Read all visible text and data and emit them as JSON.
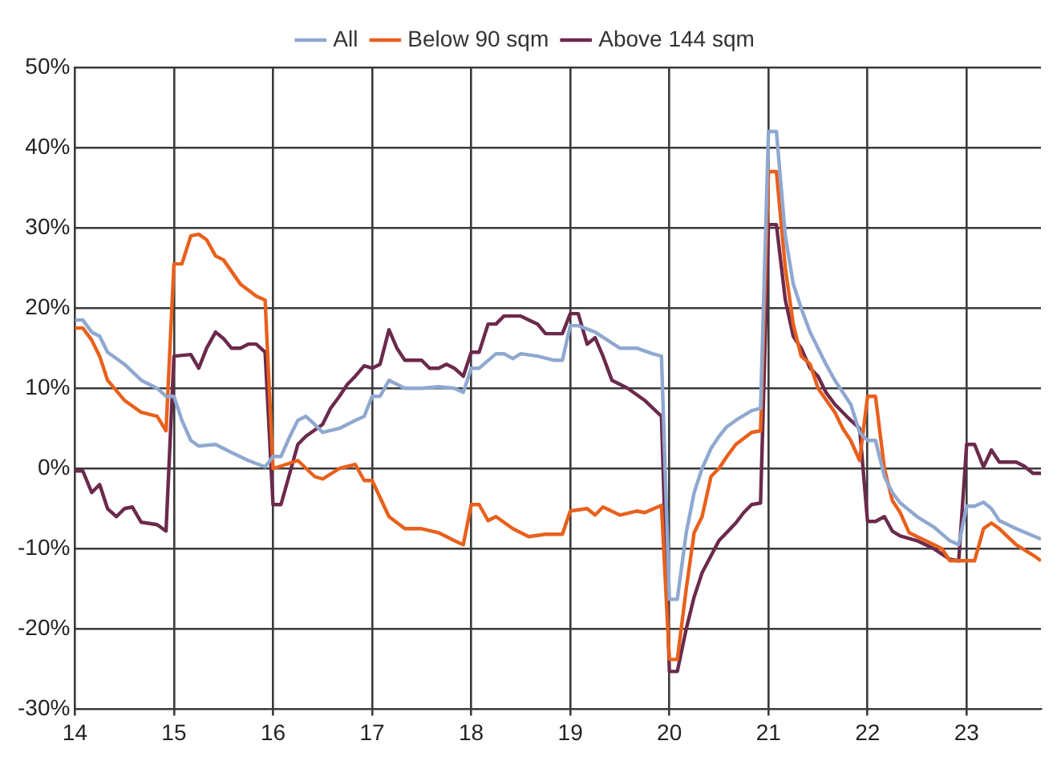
{
  "chart_data": {
    "type": "line",
    "xlim": [
      14,
      23.75
    ],
    "xticks": [
      14,
      15,
      16,
      17,
      18,
      19,
      20,
      21,
      22,
      23
    ],
    "ylim": [
      -30,
      50
    ],
    "yticks": [
      {
        "value": -30,
        "label": "-30%"
      },
      {
        "value": -20,
        "label": "-20%"
      },
      {
        "value": -10,
        "label": "-10%"
      },
      {
        "value": 0,
        "label": "0%"
      },
      {
        "value": 10,
        "label": "10%"
      },
      {
        "value": 20,
        "label": "20%"
      },
      {
        "value": 30,
        "label": "30%"
      },
      {
        "value": 40,
        "label": "40%"
      },
      {
        "value": 50,
        "label": "50%"
      }
    ],
    "grid": true,
    "legend": "top",
    "marker": "none",
    "line_style": "solid",
    "series": [
      {
        "name": "All",
        "color": "#8fa8d0",
        "x": [
          14,
          14.08,
          14.17,
          14.25,
          14.33,
          14.5,
          14.67,
          14.83,
          14.92,
          15,
          15.08,
          15.17,
          15.25,
          15.42,
          15.58,
          15.75,
          15.92,
          16,
          16.08,
          16.17,
          16.25,
          16.33,
          16.42,
          16.5,
          16.67,
          16.83,
          16.92,
          17,
          17.08,
          17.17,
          17.33,
          17.5,
          17.67,
          17.83,
          17.92,
          18,
          18.08,
          18.25,
          18.33,
          18.42,
          18.5,
          18.67,
          18.83,
          18.92,
          19,
          19.08,
          19.25,
          19.5,
          19.67,
          19.83,
          19.92,
          20,
          20.08,
          20.17,
          20.25,
          20.33,
          20.42,
          20.5,
          20.58,
          20.67,
          20.83,
          20.92,
          21,
          21.08,
          21.17,
          21.25,
          21.33,
          21.42,
          21.5,
          21.58,
          21.67,
          21.75,
          21.83,
          21.92,
          22,
          22.08,
          22.17,
          22.25,
          22.33,
          22.5,
          22.67,
          22.83,
          22.92,
          23,
          23.08,
          23.17,
          23.25,
          23.33,
          23.5,
          23.75
        ],
        "values": [
          18.5,
          18.5,
          17,
          16.5,
          14.5,
          13,
          11,
          10,
          9,
          9,
          6,
          3.5,
          2.8,
          3,
          2,
          1,
          0.2,
          1.5,
          1.5,
          4,
          6,
          6.5,
          5.5,
          4.5,
          5,
          6,
          6.5,
          9,
          9,
          11,
          10,
          10,
          10.2,
          10,
          9.5,
          12.5,
          12.5,
          14.3,
          14.3,
          13.7,
          14.3,
          14,
          13.5,
          13.5,
          17.8,
          17.8,
          17,
          15,
          15,
          14.3,
          14,
          -16.3,
          -16.3,
          -8,
          -3,
          0,
          2.5,
          4,
          5.2,
          6,
          7.2,
          7.5,
          42,
          42,
          29,
          23,
          20,
          17,
          15,
          13,
          11,
          9.5,
          8,
          4.5,
          3.5,
          3.5,
          -1,
          -3,
          -4.3,
          -6,
          -7.3,
          -9,
          -9.5,
          -4.7,
          -4.7,
          -4.2,
          -5,
          -6.5,
          -7.5,
          -8.8
        ]
      },
      {
        "name": "Below 90 sqm",
        "color": "#e8601c",
        "x": [
          14,
          14.08,
          14.17,
          14.25,
          14.33,
          14.5,
          14.67,
          14.83,
          14.92,
          15,
          15.08,
          15.17,
          15.25,
          15.33,
          15.42,
          15.5,
          15.67,
          15.83,
          15.92,
          16,
          16.08,
          16.25,
          16.42,
          16.5,
          16.67,
          16.83,
          16.92,
          17,
          17.17,
          17.33,
          17.5,
          17.67,
          17.83,
          17.92,
          18,
          18.08,
          18.17,
          18.25,
          18.42,
          18.58,
          18.75,
          18.92,
          19,
          19.17,
          19.25,
          19.33,
          19.5,
          19.67,
          19.75,
          19.92,
          20,
          20.08,
          20.17,
          20.25,
          20.33,
          20.42,
          20.5,
          20.58,
          20.67,
          20.83,
          20.92,
          21,
          21.08,
          21.17,
          21.25,
          21.33,
          21.42,
          21.5,
          21.67,
          21.75,
          21.83,
          21.92,
          22,
          22.08,
          22.17,
          22.25,
          22.33,
          22.42,
          22.5,
          22.67,
          22.75,
          22.83,
          22.92,
          23,
          23.08,
          23.17,
          23.25,
          23.33,
          23.5,
          23.67,
          23.75
        ],
        "values": [
          17.5,
          17.5,
          16,
          14,
          11,
          8.5,
          7,
          6.5,
          4.7,
          25.5,
          25.5,
          29,
          29.2,
          28.5,
          26.5,
          26,
          23,
          21.5,
          21,
          0,
          0.3,
          1,
          -1,
          -1.3,
          0,
          0.5,
          -1.5,
          -1.5,
          -6,
          -7.5,
          -7.5,
          -8,
          -9,
          -9.5,
          -4.5,
          -4.5,
          -6.5,
          -6,
          -7.5,
          -8.5,
          -8.2,
          -8.2,
          -5.3,
          -5,
          -5.8,
          -4.8,
          -5.8,
          -5.3,
          -5.5,
          -4.6,
          -23.8,
          -23.8,
          -15,
          -8,
          -6,
          -1,
          0,
          1.5,
          3,
          4.5,
          4.7,
          37,
          37,
          25,
          18,
          14,
          13,
          10,
          7,
          5,
          3.5,
          1,
          9,
          9,
          0,
          -4,
          -5.5,
          -8,
          -8.5,
          -9.5,
          -10,
          -11.5,
          -11.5,
          -11.5,
          -11.5,
          -7.5,
          -6.8,
          -7.5,
          -9.5,
          -10.8,
          -11.5
        ]
      },
      {
        "name": "Above 144 sqm",
        "color": "#6b2a4c",
        "x": [
          14,
          14.08,
          14.17,
          14.25,
          14.33,
          14.42,
          14.5,
          14.58,
          14.67,
          14.83,
          14.92,
          15,
          15.17,
          15.25,
          15.33,
          15.42,
          15.5,
          15.58,
          15.67,
          15.75,
          15.83,
          15.92,
          16,
          16.08,
          16.25,
          16.33,
          16.5,
          16.58,
          16.67,
          16.75,
          16.83,
          16.92,
          17,
          17.08,
          17.17,
          17.25,
          17.33,
          17.5,
          17.58,
          17.67,
          17.75,
          17.83,
          17.92,
          18,
          18.08,
          18.17,
          18.25,
          18.33,
          18.5,
          18.67,
          18.75,
          18.92,
          19,
          19.08,
          19.17,
          19.25,
          19.33,
          19.42,
          19.58,
          19.75,
          19.92,
          20,
          20.08,
          20.17,
          20.25,
          20.33,
          20.5,
          20.67,
          20.75,
          20.83,
          20.92,
          21,
          21.08,
          21.17,
          21.25,
          21.33,
          21.42,
          21.5,
          21.58,
          21.67,
          21.75,
          21.83,
          21.92,
          22,
          22.08,
          22.17,
          22.25,
          22.33,
          22.5,
          22.67,
          22.83,
          22.92,
          23,
          23.08,
          23.17,
          23.25,
          23.33,
          23.5,
          23.58,
          23.67,
          23.75
        ],
        "values": [
          -0.3,
          -0.3,
          -3,
          -2,
          -5,
          -6,
          -5,
          -4.8,
          -6.7,
          -7,
          -7.8,
          14,
          14.2,
          12.5,
          15,
          17,
          16.2,
          15,
          15,
          15.5,
          15.5,
          14.5,
          -4.5,
          -4.5,
          3,
          4,
          5.5,
          7.5,
          9,
          10.5,
          11.5,
          12.8,
          12.5,
          13,
          17.3,
          15,
          13.5,
          13.5,
          12.5,
          12.5,
          13,
          12.5,
          11.5,
          14.5,
          14.5,
          18,
          18,
          19,
          19,
          18,
          16.8,
          16.8,
          19.3,
          19.3,
          15.5,
          16.3,
          14,
          11,
          10,
          8.5,
          6.5,
          -25.3,
          -25.3,
          -20,
          -16,
          -13,
          -9,
          -6.8,
          -5.5,
          -4.5,
          -4.3,
          30.4,
          30.4,
          21,
          16.5,
          15,
          12.5,
          11.5,
          9.5,
          8,
          7,
          6,
          5,
          -6.6,
          -6.6,
          -6,
          -7.8,
          -8.4,
          -9,
          -10,
          -11.3,
          -11.5,
          3,
          3,
          0.2,
          2.3,
          0.8,
          0.8,
          0.3,
          -0.6,
          -0.6
        ]
      }
    ]
  }
}
